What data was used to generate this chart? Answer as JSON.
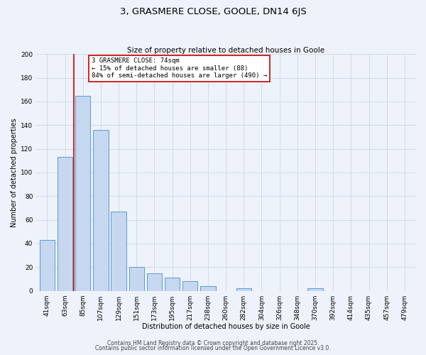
{
  "title": "3, GRASMERE CLOSE, GOOLE, DN14 6JS",
  "subtitle": "Size of property relative to detached houses in Goole",
  "xlabel": "Distribution of detached houses by size in Goole",
  "ylabel": "Number of detached properties",
  "categories": [
    "41sqm",
    "63sqm",
    "85sqm",
    "107sqm",
    "129sqm",
    "151sqm",
    "173sqm",
    "195sqm",
    "217sqm",
    "238sqm",
    "260sqm",
    "282sqm",
    "304sqm",
    "326sqm",
    "348sqm",
    "370sqm",
    "392sqm",
    "414sqm",
    "435sqm",
    "457sqm",
    "479sqm"
  ],
  "values": [
    43,
    113,
    165,
    136,
    67,
    20,
    15,
    11,
    8,
    4,
    0,
    2,
    0,
    0,
    0,
    2,
    0,
    0,
    0,
    0,
    0
  ],
  "bar_color": "#c5d8f0",
  "bar_edge_color": "#5b9bd5",
  "vline_color": "#cc0000",
  "vline_pos": 1.5,
  "annotation_title": "3 GRASMERE CLOSE: 74sqm",
  "annotation_line1": "← 15% of detached houses are smaller (88)",
  "annotation_line2": "84% of semi-detached houses are larger (490) →",
  "annotation_box_color": "#ffffff",
  "annotation_box_edge": "#cc0000",
  "ylim": [
    0,
    200
  ],
  "yticks": [
    0,
    20,
    40,
    60,
    80,
    100,
    120,
    140,
    160,
    180,
    200
  ],
  "footer1": "Contains HM Land Registry data © Crown copyright and database right 2025.",
  "footer2": "Contains public sector information licensed under the Open Government Licence v3.0.",
  "bg_color": "#eef2fa",
  "plot_bg_color": "#eef2fa",
  "title_fontsize": 9.5,
  "subtitle_fontsize": 7.5,
  "axis_label_fontsize": 7,
  "tick_fontsize": 6.5,
  "annotation_fontsize": 6.5,
  "footer_fontsize": 5.5
}
